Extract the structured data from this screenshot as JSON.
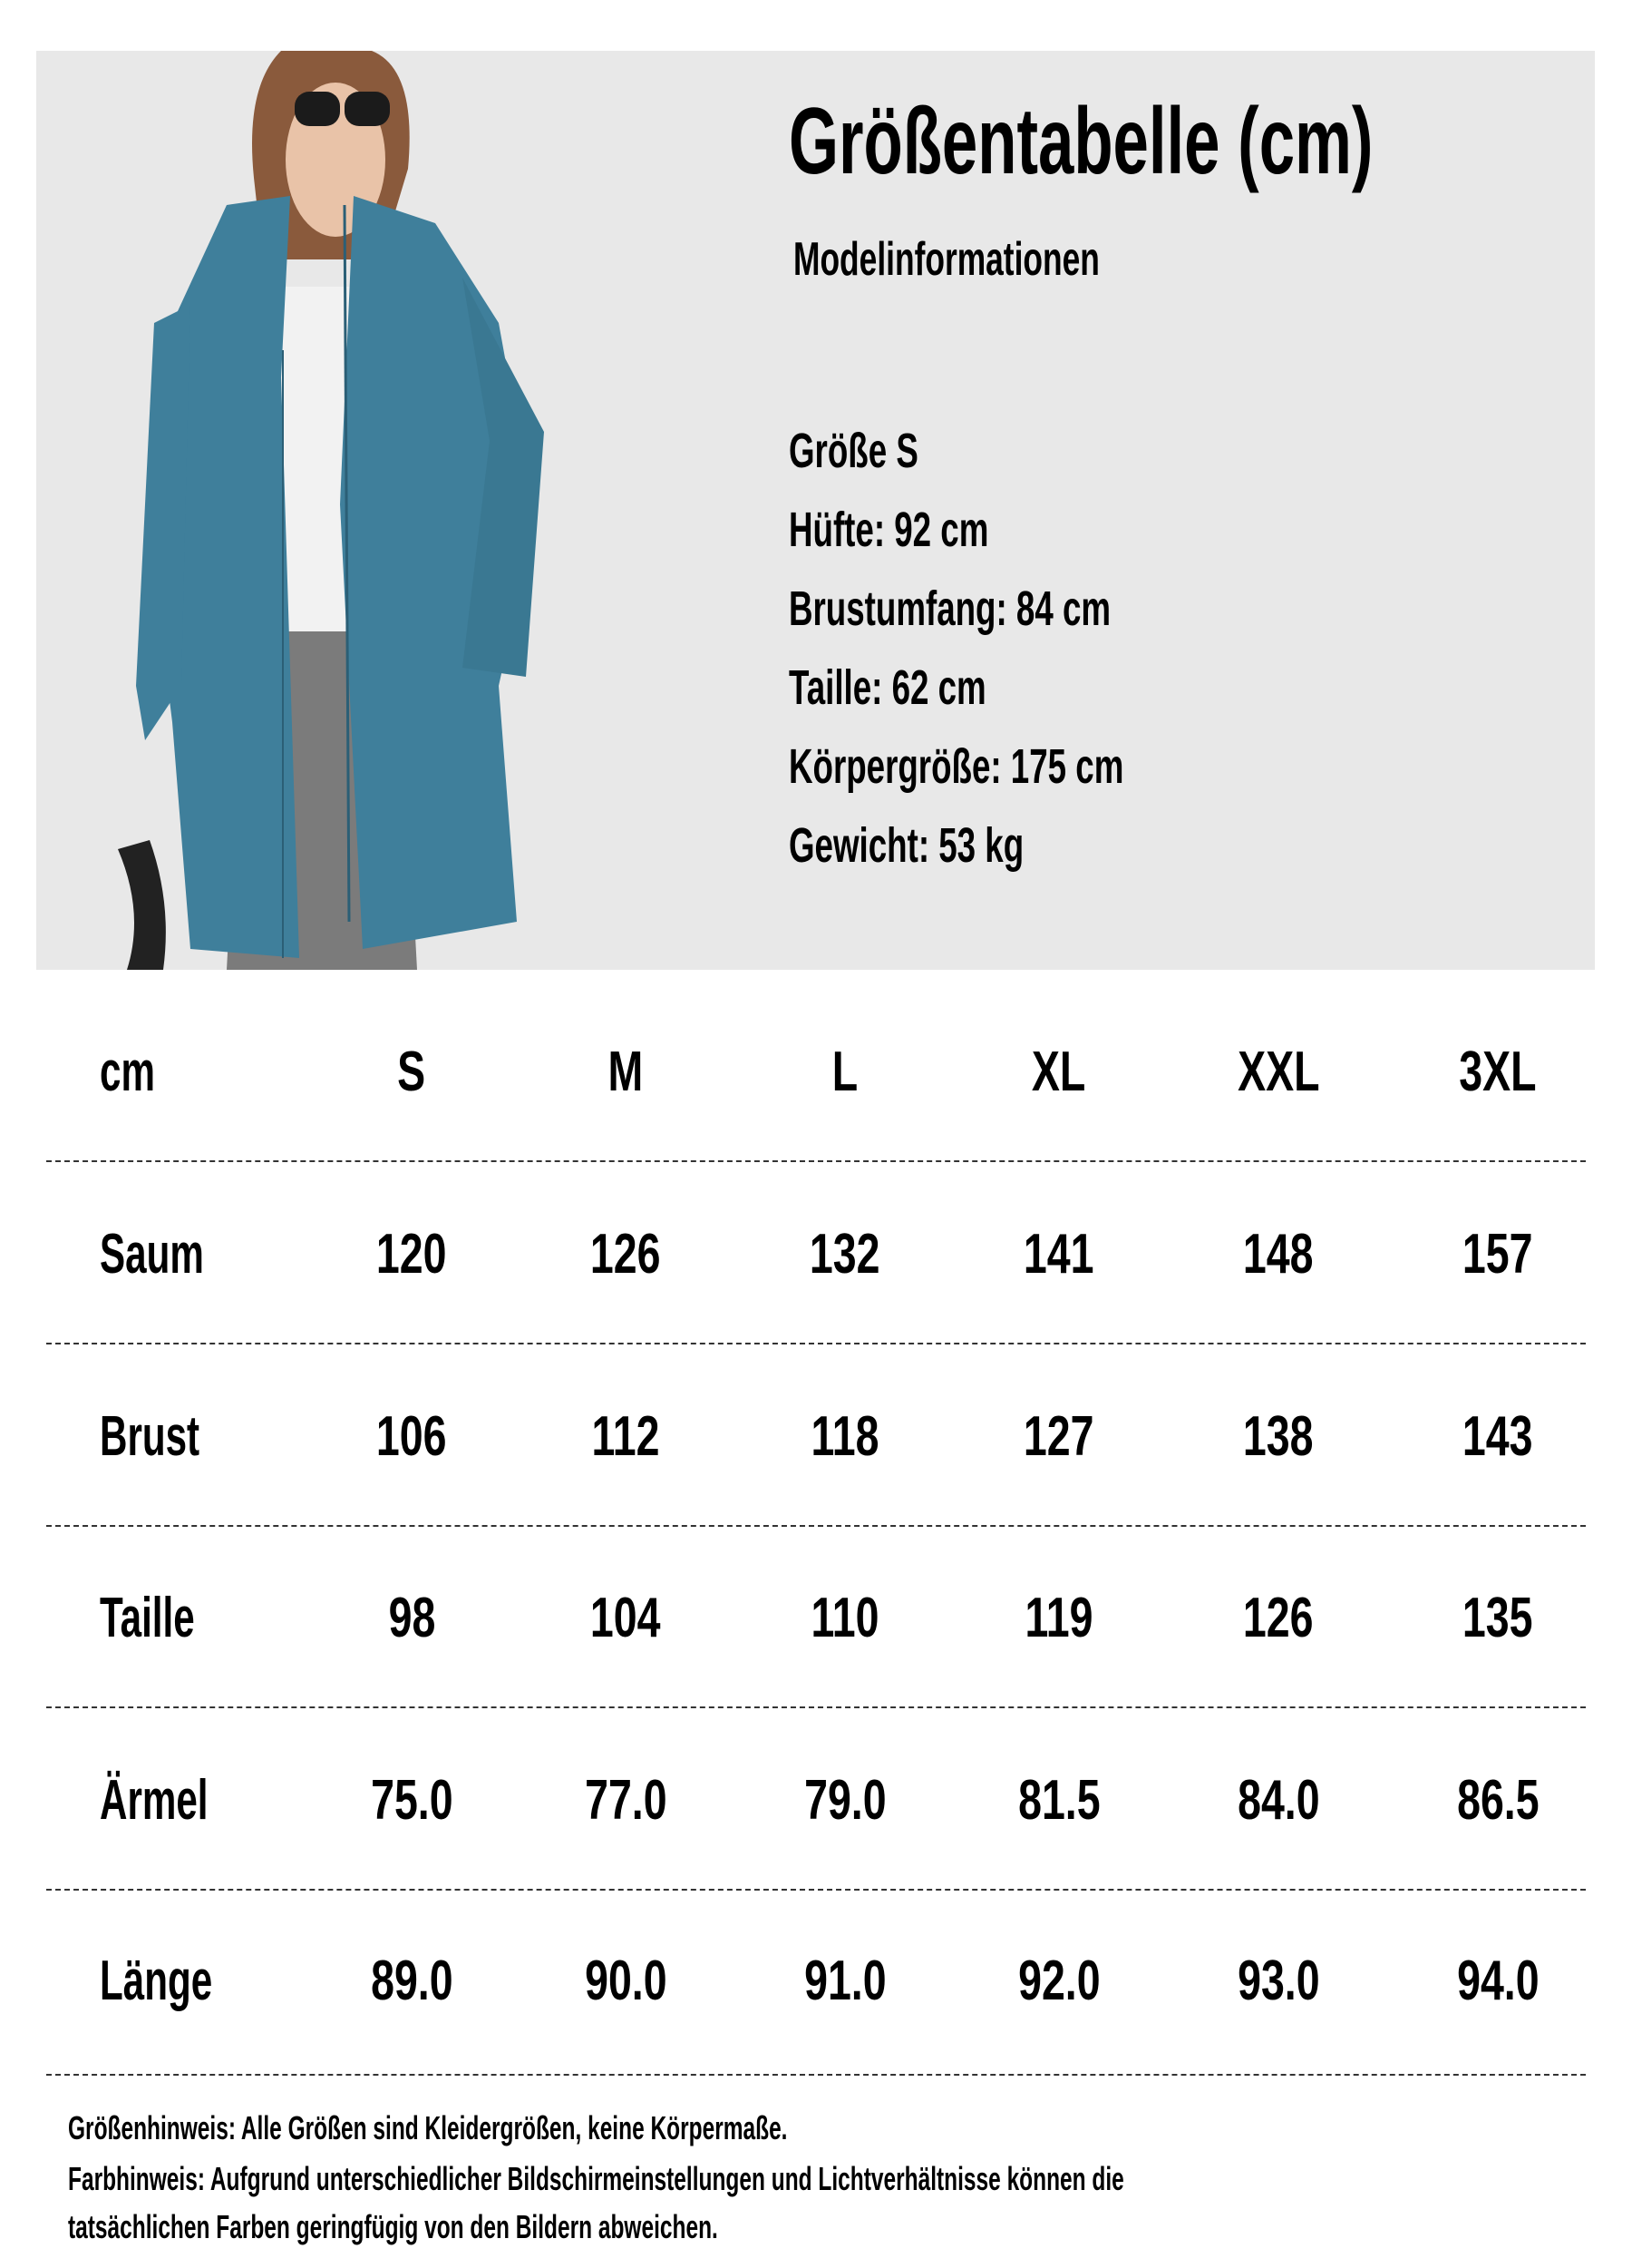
{
  "header": {
    "title": "Größentabelle (cm)",
    "subtitle": "Modelinformationen",
    "model_info": [
      "Größe S",
      "Hüfte: 92 cm",
      "Brustumfang: 84 cm",
      "Taille: 62 cm",
      "Körpergröße: 175 cm",
      "Gewicht: 53 kg"
    ]
  },
  "colors": {
    "panel_bg": "#e8e8e8",
    "jacket": "#3f7f9b",
    "text": "#000000"
  },
  "table": {
    "unit_label": "cm",
    "sizes": [
      "S",
      "M",
      "L",
      "XL",
      "XXL",
      "3XL"
    ],
    "rows": [
      {
        "label": "Saum",
        "values": [
          "120",
          "126",
          "132",
          "141",
          "148",
          "157"
        ]
      },
      {
        "label": "Brust",
        "values": [
          "106",
          "112",
          "118",
          "127",
          "138",
          "143"
        ]
      },
      {
        "label": "Taille",
        "values": [
          "98",
          "104",
          "110",
          "119",
          "126",
          "135"
        ]
      },
      {
        "label": "Ärmel",
        "values": [
          "75.0",
          "77.0",
          "79.0",
          "81.5",
          "84.0",
          "86.5"
        ]
      },
      {
        "label": "Länge",
        "values": [
          "89.0",
          "90.0",
          "91.0",
          "92.0",
          "93.0",
          "94.0"
        ]
      }
    ]
  },
  "notes": [
    "Größenhinweis: Alle Größen sind Kleidergrößen, keine Körpermaße.",
    "Farbhinweis: Aufgrund unterschiedlicher Bildschirmeinstellungen und Lichtverhältnisse können die",
    "tatsächlichen Farben geringfügig von den Bildern abweichen."
  ]
}
